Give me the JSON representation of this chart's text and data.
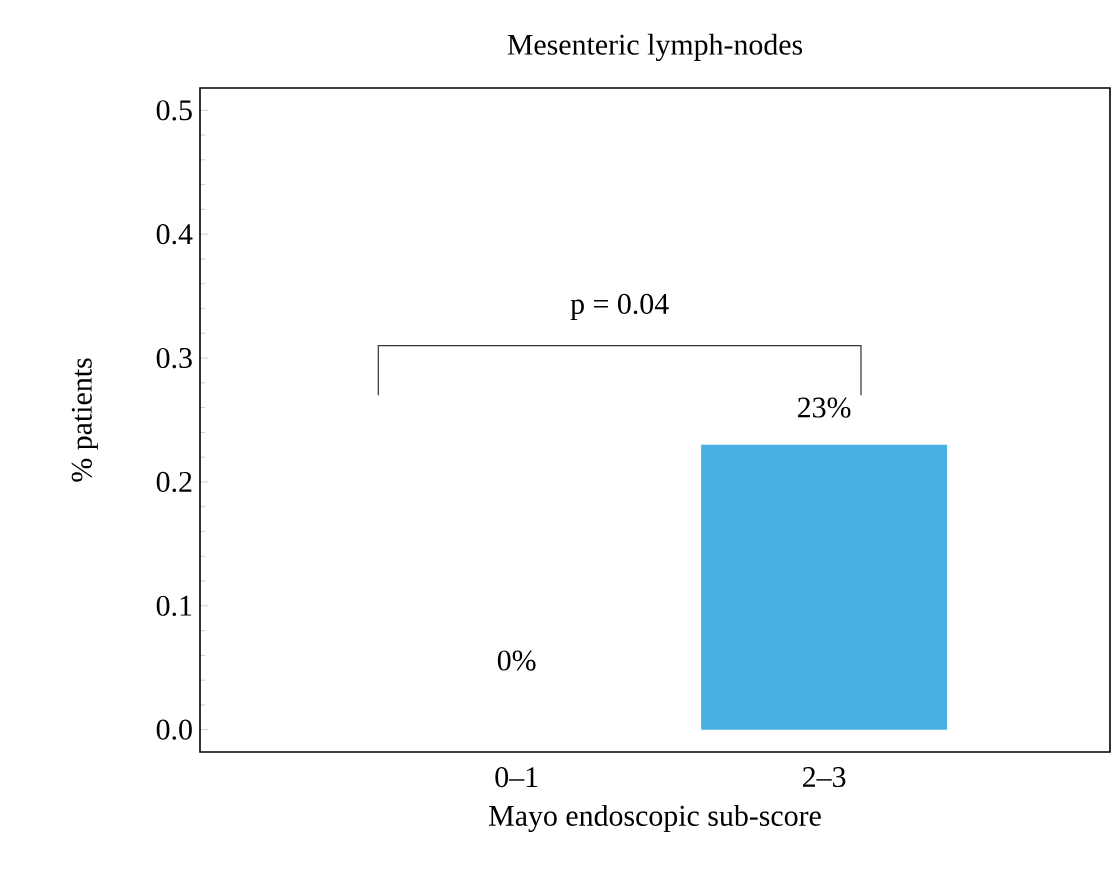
{
  "chart_data": {
    "type": "bar",
    "title": "Mesenteric lymph-nodes",
    "xlabel": "Mayo endoscopic sub-score",
    "ylabel": "% patients",
    "categories": [
      "0–1",
      "2–3"
    ],
    "values": [
      0,
      0.23
    ],
    "color": "#48b0e2",
    "value_labels": [
      "0%",
      "23%"
    ],
    "ylim": [
      -0.018,
      0.518
    ],
    "yticks": [
      {
        "value": 0,
        "label": "0.0"
      },
      {
        "value": 0.1,
        "label": "0.1"
      },
      {
        "value": 0.2,
        "label": "0.2"
      },
      {
        "value": 0.3,
        "label": "0.3"
      },
      {
        "value": 0.4,
        "label": "0.4"
      },
      {
        "value": 0.5,
        "label": "0.5"
      }
    ],
    "annotations": [
      "p = 0.04"
    ],
    "grid": false
  }
}
